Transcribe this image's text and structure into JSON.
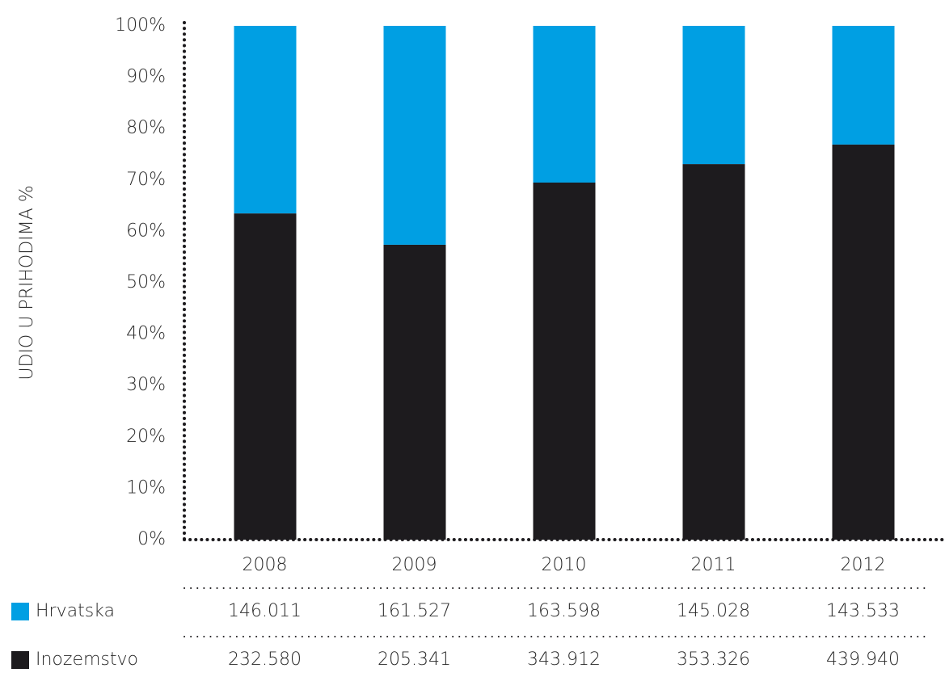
{
  "chart_data": {
    "type": "stacked_bar",
    "y_label": "UDIO U PRIHODIMA %",
    "categories": [
      "2008",
      "2009",
      "2010",
      "2011",
      "2012"
    ],
    "series": [
      {
        "name": "Hrvatska",
        "color": "#009fe3",
        "values": [
          36.5,
          42.6,
          30.5,
          26.9,
          23.1
        ],
        "table_values": [
          "146.011",
          "161.527",
          "163.598",
          "145.028",
          "143.533"
        ]
      },
      {
        "name": "Inozemstvo",
        "color": "#1d1b1e",
        "values": [
          63.5,
          57.4,
          69.5,
          73.1,
          76.9
        ],
        "table_values": [
          "232.580",
          "205.341",
          "343.912",
          "353.326",
          "439.940"
        ]
      }
    ],
    "ylim": [
      0,
      100
    ],
    "yticks": [
      {
        "value": 0,
        "label": "0%"
      },
      {
        "value": 10,
        "label": "10%"
      },
      {
        "value": 20,
        "label": "20%"
      },
      {
        "value": 30,
        "label": "30%"
      },
      {
        "value": 40,
        "label": "40%"
      },
      {
        "value": 50,
        "label": "50%"
      },
      {
        "value": 60,
        "label": "60%"
      },
      {
        "value": 70,
        "label": "70%"
      },
      {
        "value": 80,
        "label": "80%"
      },
      {
        "value": 90,
        "label": "90%"
      },
      {
        "value": 100,
        "label": "100%"
      }
    ]
  }
}
